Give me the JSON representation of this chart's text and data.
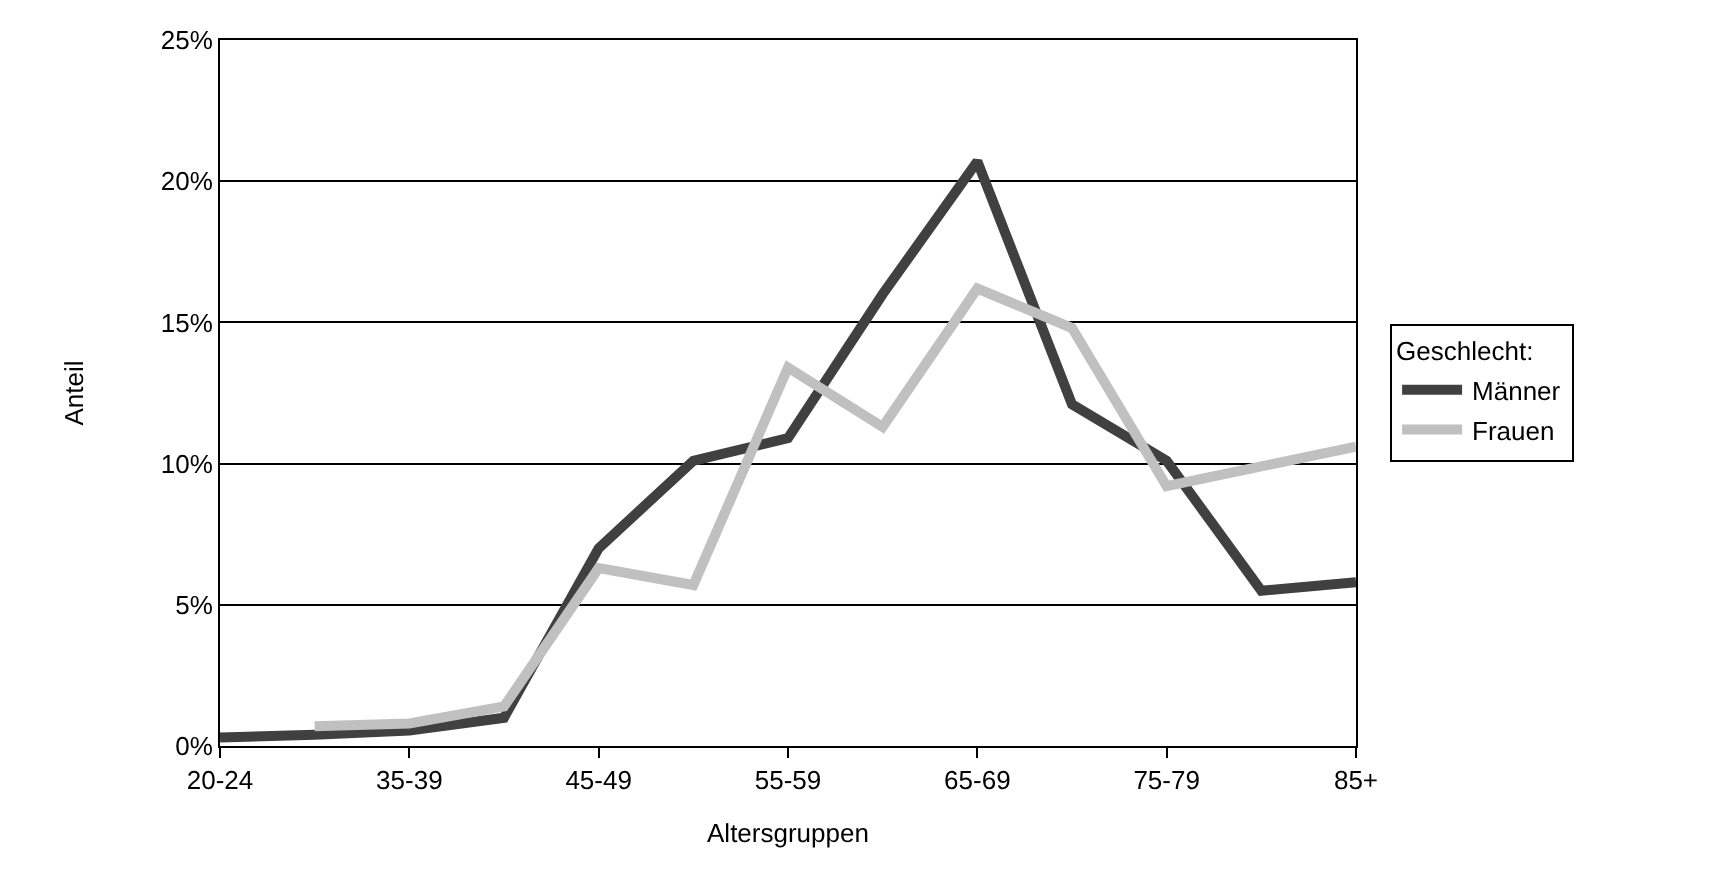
{
  "chart_data": {
    "type": "line",
    "xlabel": "Altersgruppen",
    "ylabel": "Anteil",
    "legend_title": "Geschlecht:",
    "categories": [
      "20-24",
      null,
      "35-39",
      null,
      "45-49",
      null,
      "55-59",
      null,
      "65-69",
      null,
      "75-79",
      null,
      "85+"
    ],
    "series": [
      {
        "name": "Männer",
        "color": "#404040",
        "values": [
          0.3,
          0.4,
          0.55,
          1.0,
          7.0,
          10.1,
          10.9,
          16.0,
          20.7,
          12.1,
          10.1,
          5.5,
          5.8
        ]
      },
      {
        "name": "Frauen",
        "color": "#c0c0c0",
        "values": [
          null,
          0.7,
          0.8,
          1.4,
          6.3,
          5.7,
          13.4,
          11.3,
          16.2,
          14.8,
          9.2,
          9.9,
          10.6
        ]
      }
    ],
    "ylim": [
      0,
      25
    ],
    "yticks": [
      {
        "value": 0,
        "label": "0%"
      },
      {
        "value": 5,
        "label": "5%"
      },
      {
        "value": 10,
        "label": "10%"
      },
      {
        "value": 15,
        "label": "15%"
      },
      {
        "value": 20,
        "label": "20%"
      },
      {
        "value": 25,
        "label": "25%"
      }
    ],
    "grid": "y",
    "legend": "right",
    "marker": "none",
    "line_style": "solid"
  }
}
